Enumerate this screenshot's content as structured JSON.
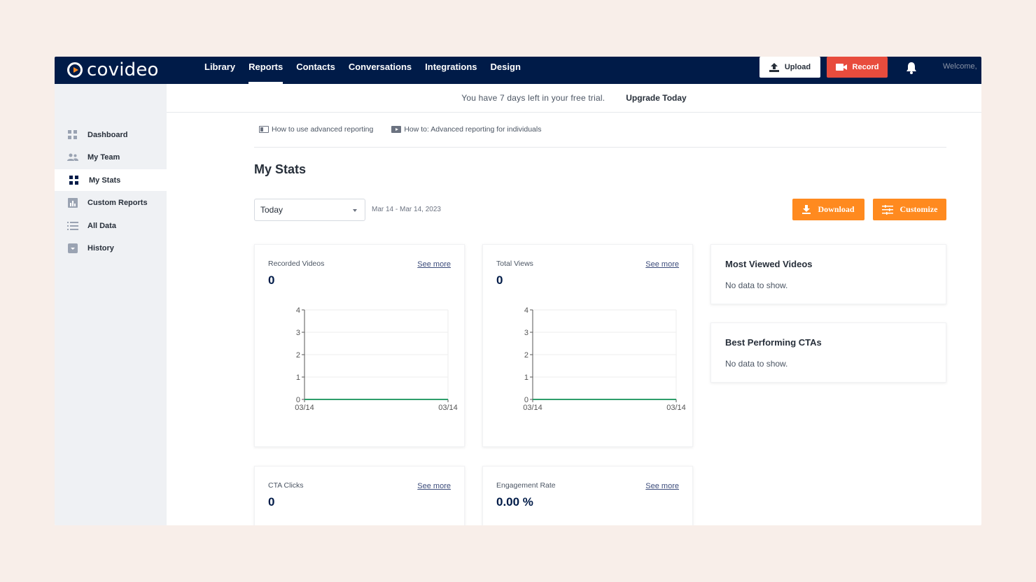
{
  "app": {
    "logo_text": "covideo"
  },
  "nav": {
    "items": [
      {
        "label": "Library"
      },
      {
        "label": "Reports",
        "active": true
      },
      {
        "label": "Contacts"
      },
      {
        "label": "Conversations"
      },
      {
        "label": "Integrations"
      },
      {
        "label": "Design"
      }
    ],
    "upload_label": "Upload",
    "record_label": "Record",
    "welcome": "Welcome,"
  },
  "colors": {
    "navy": "#001b48",
    "orange": "#ff8a1f",
    "red": "#e84c3d",
    "line": "#2e9e6b"
  },
  "trial": {
    "message": "You have 7 days left in your free trial.",
    "upgrade": "Upgrade Today"
  },
  "sidebar": {
    "items": [
      {
        "label": "Dashboard",
        "icon": "grid-icon"
      },
      {
        "label": "My Team",
        "icon": "team-icon"
      },
      {
        "label": "My Stats",
        "icon": "stats-grid-icon",
        "active": true
      },
      {
        "label": "Custom Reports",
        "icon": "bar-chart-icon"
      },
      {
        "label": "All Data",
        "icon": "list-icon"
      },
      {
        "label": "History",
        "icon": "history-icon"
      }
    ]
  },
  "help": {
    "link1": "How to use advanced reporting",
    "link2": "How to: Advanced reporting for individuals"
  },
  "main": {
    "title": "My Stats",
    "range_select": "Today",
    "date_range": "Mar 14 - Mar 14, 2023",
    "download_label": "Download",
    "customize_label": "Customize"
  },
  "cards": {
    "recorded": {
      "label": "Recorded Videos",
      "see_more": "See more",
      "value": "0"
    },
    "views": {
      "label": "Total Views",
      "see_more": "See more",
      "value": "0"
    },
    "cta": {
      "label": "CTA Clicks",
      "see_more": "See more",
      "value": "0"
    },
    "engagement": {
      "label": "Engagement Rate",
      "see_more": "See more",
      "value": "0.00 %"
    },
    "most_viewed": {
      "title": "Most Viewed Videos",
      "empty": "No data to show."
    },
    "best_ctas": {
      "title": "Best Performing CTAs",
      "empty": "No data to show."
    }
  },
  "chart_data": [
    {
      "type": "line",
      "x": [
        "03/14",
        "03/14"
      ],
      "series": [
        {
          "values": [
            0,
            0
          ]
        }
      ],
      "y_ticks": [
        "0",
        "1",
        "2",
        "3",
        "4"
      ],
      "ylim": [
        0,
        4
      ],
      "grid": true
    },
    {
      "type": "line",
      "x": [
        "03/14",
        "03/14"
      ],
      "series": [
        {
          "values": [
            0,
            0
          ]
        }
      ],
      "y_ticks": [
        "0",
        "1",
        "2",
        "3",
        "4"
      ],
      "ylim": [
        0,
        4
      ],
      "grid": true
    }
  ]
}
